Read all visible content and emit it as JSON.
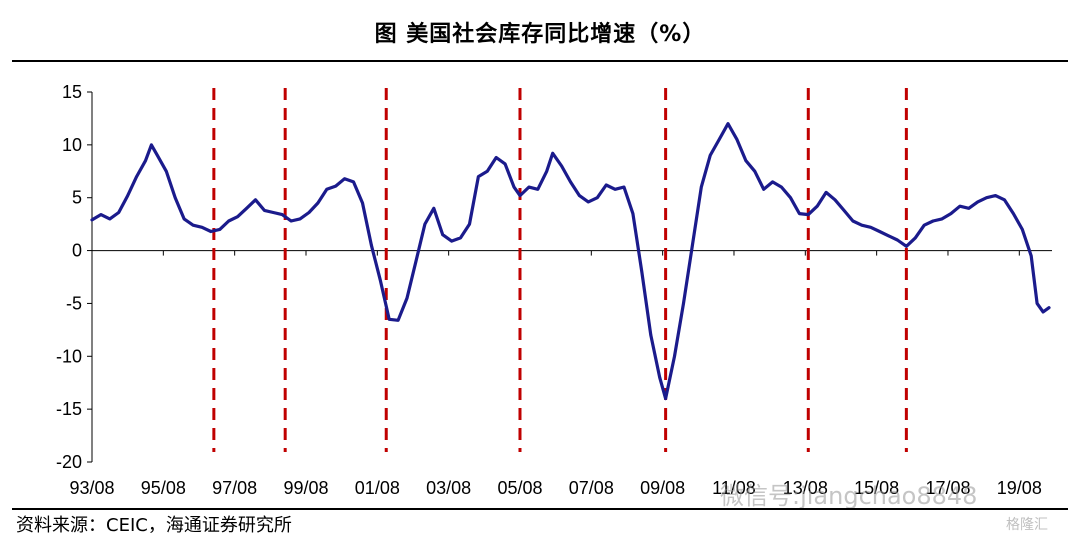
{
  "header": {
    "title": "图 美国社会库存同比增速（%）"
  },
  "footer": {
    "source": "资料来源：CEIC，海通证券研究所"
  },
  "watermark": {
    "text": "微信号:jiangchao8848",
    "badge": "格隆汇"
  },
  "colors": {
    "line": "#1b1b8c",
    "recession_markers": "#c00000",
    "axis": "#000000"
  },
  "chart_data": {
    "type": "line",
    "title": "美国社会库存同比增速（%）",
    "xlabel": "",
    "ylabel": "",
    "ylim": [
      -20,
      15
    ],
    "y_ticks": [
      "15",
      "10",
      "5",
      "0",
      "-5",
      "-10",
      "-15",
      "-20"
    ],
    "x_tick_labels": [
      "93/08",
      "95/08",
      "97/08",
      "99/08",
      "01/08",
      "03/08",
      "05/08",
      "07/08",
      "09/08",
      "11/08",
      "13/08",
      "15/08",
      "17/08",
      "19/08"
    ],
    "grid": false,
    "series": [
      {
        "points": [
          [
            "1993-08",
            2.9
          ],
          [
            "1993-11",
            3.4
          ],
          [
            "1994-02",
            3.0
          ],
          [
            "1994-05",
            3.6
          ],
          [
            "1994-08",
            5.2
          ],
          [
            "1994-11",
            7.0
          ],
          [
            "1995-02",
            8.5
          ],
          [
            "1995-04",
            10.0
          ],
          [
            "1995-06",
            9.0
          ],
          [
            "1995-09",
            7.5
          ],
          [
            "1995-12",
            5.0
          ],
          [
            "1996-03",
            3.0
          ],
          [
            "1996-06",
            2.4
          ],
          [
            "1996-09",
            2.2
          ],
          [
            "1996-12",
            1.8
          ],
          [
            "1997-03",
            2.0
          ],
          [
            "1997-06",
            2.8
          ],
          [
            "1997-09",
            3.2
          ],
          [
            "1997-12",
            4.0
          ],
          [
            "1998-03",
            4.8
          ],
          [
            "1998-06",
            3.8
          ],
          [
            "1998-09",
            3.6
          ],
          [
            "1998-12",
            3.4
          ],
          [
            "1999-03",
            2.8
          ],
          [
            "1999-06",
            3.0
          ],
          [
            "1999-09",
            3.6
          ],
          [
            "1999-12",
            4.5
          ],
          [
            "2000-03",
            5.8
          ],
          [
            "2000-06",
            6.1
          ],
          [
            "2000-09",
            6.8
          ],
          [
            "2000-12",
            6.5
          ],
          [
            "2001-03",
            4.5
          ],
          [
            "2001-06",
            0.5
          ],
          [
            "2001-09",
            -2.8
          ],
          [
            "2001-12",
            -6.5
          ],
          [
            "2002-03",
            -6.6
          ],
          [
            "2002-06",
            -4.5
          ],
          [
            "2002-09",
            -1.0
          ],
          [
            "2002-12",
            2.5
          ],
          [
            "2003-03",
            4.0
          ],
          [
            "2003-06",
            1.5
          ],
          [
            "2003-09",
            0.9
          ],
          [
            "2003-12",
            1.2
          ],
          [
            "2004-03",
            2.5
          ],
          [
            "2004-06",
            7.0
          ],
          [
            "2004-09",
            7.5
          ],
          [
            "2004-12",
            8.8
          ],
          [
            "2005-03",
            8.2
          ],
          [
            "2005-06",
            6.0
          ],
          [
            "2005-08",
            5.2
          ],
          [
            "2005-11",
            6.0
          ],
          [
            "2006-02",
            5.8
          ],
          [
            "2006-05",
            7.5
          ],
          [
            "2006-07",
            9.2
          ],
          [
            "2006-10",
            8.0
          ],
          [
            "2007-01",
            6.5
          ],
          [
            "2007-04",
            5.2
          ],
          [
            "2007-07",
            4.6
          ],
          [
            "2007-10",
            5.0
          ],
          [
            "2008-01",
            6.2
          ],
          [
            "2008-04",
            5.8
          ],
          [
            "2008-07",
            6.0
          ],
          [
            "2008-10",
            3.5
          ],
          [
            "2009-01",
            -2.0
          ],
          [
            "2009-04",
            -8.0
          ],
          [
            "2009-07",
            -12.0
          ],
          [
            "2009-09",
            -14.0
          ],
          [
            "2009-12",
            -10.0
          ],
          [
            "2010-03",
            -5.0
          ],
          [
            "2010-06",
            0.5
          ],
          [
            "2010-09",
            6.0
          ],
          [
            "2010-12",
            9.0
          ],
          [
            "2011-03",
            10.5
          ],
          [
            "2011-06",
            12.0
          ],
          [
            "2011-09",
            10.5
          ],
          [
            "2011-12",
            8.5
          ],
          [
            "2012-03",
            7.5
          ],
          [
            "2012-06",
            5.8
          ],
          [
            "2012-09",
            6.5
          ],
          [
            "2012-12",
            6.0
          ],
          [
            "2013-03",
            5.0
          ],
          [
            "2013-06",
            3.5
          ],
          [
            "2013-09",
            3.4
          ],
          [
            "2013-12",
            4.2
          ],
          [
            "2014-03",
            5.5
          ],
          [
            "2014-06",
            4.8
          ],
          [
            "2014-09",
            3.8
          ],
          [
            "2014-12",
            2.8
          ],
          [
            "2015-03",
            2.4
          ],
          [
            "2015-06",
            2.2
          ],
          [
            "2015-09",
            1.8
          ],
          [
            "2015-12",
            1.4
          ],
          [
            "2016-03",
            1.0
          ],
          [
            "2016-06",
            0.4
          ],
          [
            "2016-09",
            1.2
          ],
          [
            "2016-12",
            2.4
          ],
          [
            "2017-03",
            2.8
          ],
          [
            "2017-06",
            3.0
          ],
          [
            "2017-09",
            3.5
          ],
          [
            "2017-12",
            4.2
          ],
          [
            "2018-03",
            4.0
          ],
          [
            "2018-06",
            4.6
          ],
          [
            "2018-09",
            5.0
          ],
          [
            "2018-12",
            5.2
          ],
          [
            "2019-03",
            4.8
          ],
          [
            "2019-06",
            3.5
          ],
          [
            "2019-09",
            2.0
          ],
          [
            "2019-12",
            -0.5
          ],
          [
            "2020-02",
            -5.0
          ],
          [
            "2020-04",
            -5.8
          ],
          [
            "2020-06",
            -5.4
          ]
        ]
      }
    ],
    "vertical_markers": [
      "1997-01",
      "1999-01",
      "2001-11",
      "2005-08",
      "2009-09",
      "2013-09",
      "2016-06"
    ],
    "x_range": [
      "1993-08",
      "2020-07"
    ]
  }
}
